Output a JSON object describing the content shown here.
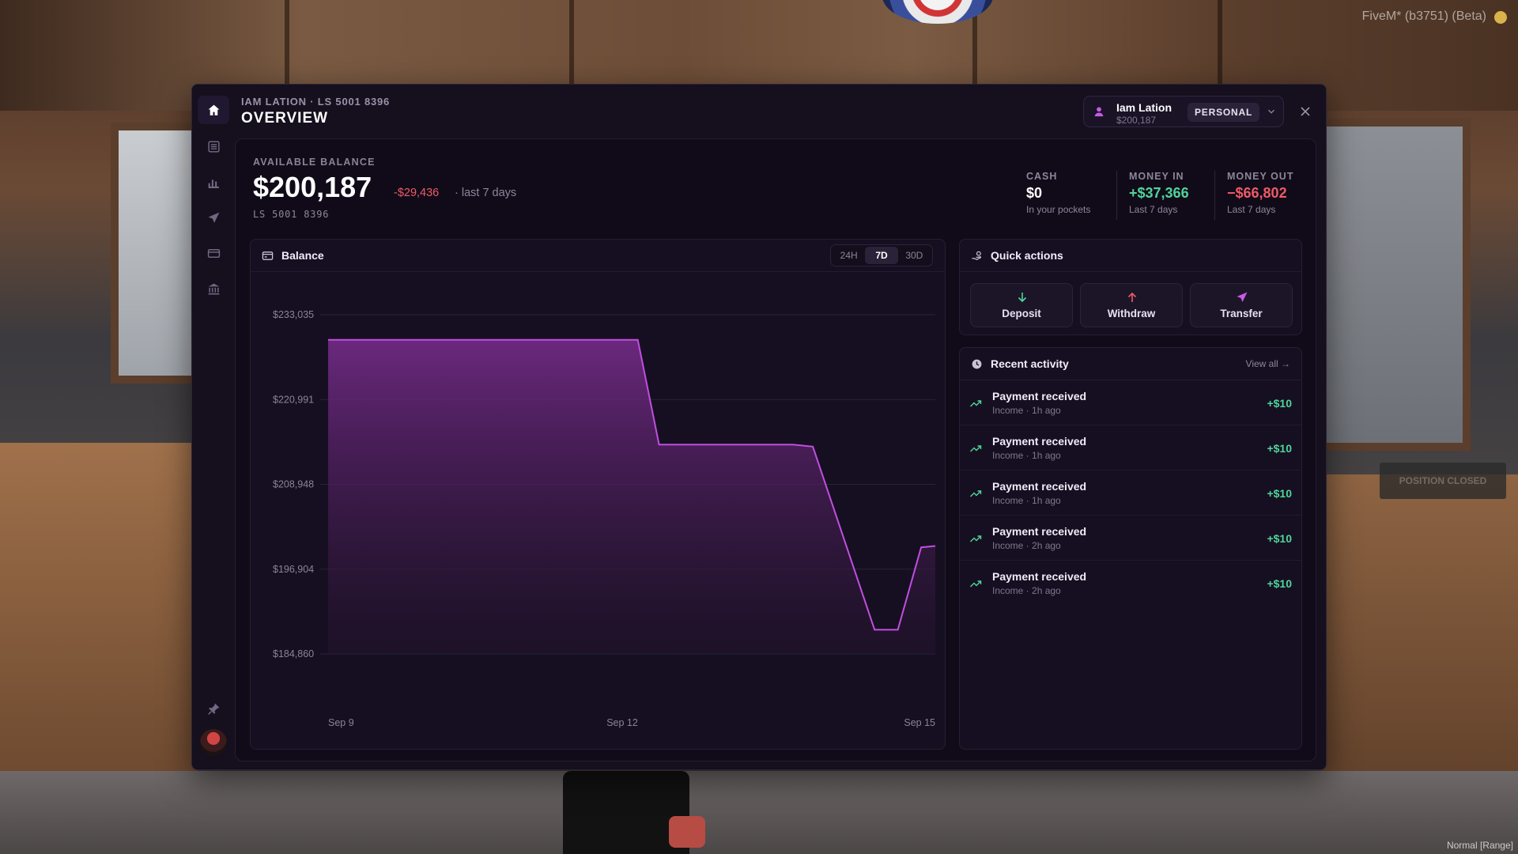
{
  "game": {
    "client_label": "FiveM* (b3751) (Beta)",
    "voice_mode": "Normal [Range]",
    "sign_text": "POSITION CLOSED"
  },
  "header": {
    "subtitle": "IAM LATION · LS 5001 8396",
    "title": "OVERVIEW"
  },
  "sidebar": {
    "items": [
      {
        "icon": "home-icon",
        "active": true
      },
      {
        "icon": "transactions-icon",
        "active": false
      },
      {
        "icon": "chart-icon",
        "active": false
      },
      {
        "icon": "send-icon",
        "active": false
      },
      {
        "icon": "card-icon",
        "active": false
      },
      {
        "icon": "bank-icon",
        "active": false
      }
    ],
    "bottom_icon": "pin-icon"
  },
  "account": {
    "name": "Iam Lation",
    "balance": "$200,187",
    "type": "PERSONAL"
  },
  "summary": {
    "label": "AVAILABLE BALANCE",
    "balance": "$200,187",
    "change": "-$29,436",
    "period": "· last 7 days",
    "account_number": "LS 5001 8396"
  },
  "stats": [
    {
      "label": "CASH",
      "value": "$0",
      "note": "In your pockets",
      "color": "#ffffff"
    },
    {
      "label": "MONEY IN",
      "value": "+$37,366",
      "note": "Last 7 days",
      "color": "#4fd59a"
    },
    {
      "label": "MONEY OUT",
      "value": "−$66,802",
      "note": "Last 7 days",
      "color": "#ee5a67"
    }
  ],
  "balance_panel": {
    "title": "Balance",
    "ranges": [
      "24H",
      "7D",
      "30D"
    ],
    "active_range": "7D"
  },
  "chart_data": {
    "type": "area",
    "title": "Balance",
    "x_ticks": [
      "Sep 9",
      "Sep 12",
      "Sep 15"
    ],
    "y_ticks": [
      "$233,035",
      "$220,991",
      "$208,948",
      "$196,904",
      "$184,860"
    ],
    "ylim": [
      184860,
      233035
    ],
    "grid": true,
    "color": "#c04fe0",
    "series": [
      {
        "x": [
          9.0,
          12.06,
          12.27,
          13.59,
          13.79,
          14.4,
          14.63,
          14.86,
          15.0
        ],
        "y": [
          229480,
          229480,
          214600,
          214600,
          214300,
          188300,
          188300,
          200000,
          200187
        ]
      }
    ]
  },
  "quick_actions": {
    "title": "Quick actions",
    "buttons": [
      {
        "label": "Deposit",
        "icon": "arrow-down-icon",
        "color": "#4fd59a"
      },
      {
        "label": "Withdraw",
        "icon": "arrow-up-icon",
        "color": "#ee5a67"
      },
      {
        "label": "Transfer",
        "icon": "send-icon",
        "color": "#c75ae6"
      }
    ]
  },
  "recent_activity": {
    "title": "Recent activity",
    "view_all": "View all →",
    "items": [
      {
        "title": "Payment received",
        "meta": "Income · 1h ago",
        "amount": "+$10"
      },
      {
        "title": "Payment received",
        "meta": "Income · 1h ago",
        "amount": "+$10"
      },
      {
        "title": "Payment received",
        "meta": "Income · 1h ago",
        "amount": "+$10"
      },
      {
        "title": "Payment received",
        "meta": "Income · 2h ago",
        "amount": "+$10"
      },
      {
        "title": "Payment received",
        "meta": "Income · 2h ago",
        "amount": "+$10"
      }
    ]
  }
}
